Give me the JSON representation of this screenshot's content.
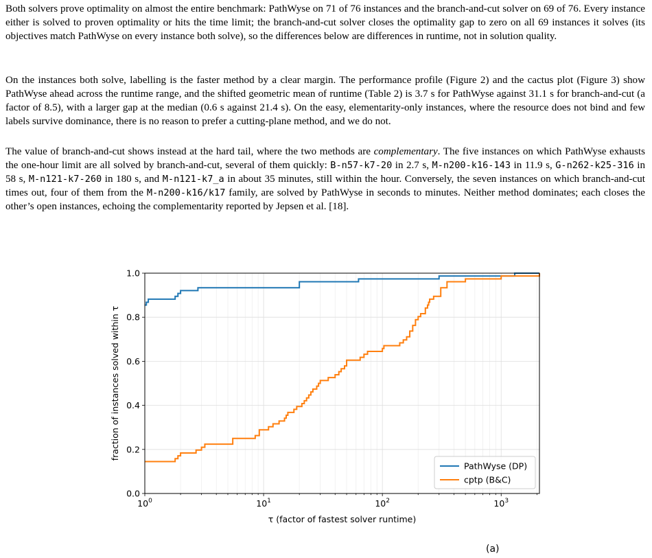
{
  "paragraphs": {
    "p1": "Both solvers prove optimality on almost the entire benchmark: PathWyse on 71 of 76 instances and the branch-and-cut solver on 69 of 76. Every instance either is solved to proven optimality or hits the time limit; the branch-and-cut solver closes the optimality gap to zero on all 69 instances it solves (its objectives match PathWyse on every instance both solve), so the differences below are differences in runtime, not in solution quality.",
    "p2": "On the instances both solve, labelling is the faster method by a clear margin. The performance profile (Figure 2) and the cactus plot (Figure 3) show PathWyse ahead across the runtime range, and the shifted geometric mean of runtime (Table 2) is 3.7 s for PathWyse against 31.1 s for branch-and-cut (a factor of 8.5), with a larger gap at the median (0.6 s against 21.4 s). On the easy, elementarity-only instances, where the resource does not bind and few labels survive dominance, there is no reason to prefer a cutting-plane method, and we do not.",
    "p3": {
      "t1": "The value of branch-and-cut shows instead at the hard tail, where the two methods are ",
      "em": "complementary",
      "t2": ". The five instances on which PathWyse exhausts the one-hour limit are all solved by branch-and-cut, several of them quickly: ",
      "c1": "B-n57-k7-20",
      "t3": " in 2.7 s, ",
      "c2": "M-n200-k16-143",
      "t4": " in 11.9 s, ",
      "c3": "G-n262-k25-316",
      "t5": " in 58 s, ",
      "c4": "M-n121-k7-260",
      "t6": " in 180 s, and ",
      "c5": "M-n121-k7_a",
      "t7": " in about 35 minutes, still within the hour. Conversely, the seven instances on which branch-and-cut times out, four of them from the ",
      "c6": "M-n200-k16/k17",
      "t8": " family, are solved by PathWyse in seconds to minutes. Neither method dominates; each closes the other’s open instances, echoing the complementarity reported by Jepsen et al. [18]."
    },
    "bottom_fragment": "(a)"
  },
  "colors": {
    "pathwyse": "#1f77b4",
    "cptp": "#ff7f0e"
  },
  "chart_data": {
    "type": "line",
    "step": "post",
    "xscale": "log",
    "xlim": [
      1,
      2100
    ],
    "ylim": [
      0,
      1
    ],
    "grid": true,
    "legend_position": "lower-right",
    "xlabel": "τ (factor of fastest solver runtime)",
    "ylabel": "fraction of instances solved within τ",
    "xticks": [
      {
        "base": "10",
        "exp": "0"
      },
      {
        "base": "10",
        "exp": "1"
      },
      {
        "base": "10",
        "exp": "2"
      },
      {
        "base": "10",
        "exp": "3"
      }
    ],
    "yticks": [
      "0.0",
      "0.2",
      "0.4",
      "0.6",
      "0.8",
      "1.0"
    ],
    "series": [
      {
        "name": "PathWyse (DP)",
        "color": "#1f77b4",
        "x": [
          1,
          1.03,
          1.07,
          1.15,
          1.8,
          1.9,
          2.0,
          2.8,
          20,
          63,
          300,
          1300,
          2100
        ],
        "y": [
          0.855,
          0.868,
          0.882,
          0.882,
          0.895,
          0.908,
          0.921,
          0.934,
          0.961,
          0.974,
          0.987,
          1.0,
          1.0
        ]
      },
      {
        "name": "cptp (B&C)",
        "color": "#ff7f0e",
        "x": [
          1,
          1.8,
          1.9,
          2.0,
          2.2,
          2.7,
          3.0,
          3.2,
          4.4,
          5.5,
          6.4,
          8.5,
          9.2,
          10,
          11,
          12,
          13.5,
          14,
          15,
          15.5,
          16,
          18,
          19,
          21,
          22,
          23,
          24,
          25,
          26,
          28,
          29,
          30,
          35,
          40,
          43,
          45,
          48,
          50,
          60,
          65,
          70,
          75,
          100,
          103,
          110,
          140,
          150,
          160,
          170,
          180,
          190,
          200,
          210,
          230,
          240,
          245,
          250,
          270,
          310,
          350,
          500,
          1000,
          2100
        ],
        "y": [
          0.145,
          0.158,
          0.171,
          0.184,
          0.184,
          0.197,
          0.21,
          0.224,
          0.224,
          0.25,
          0.25,
          0.263,
          0.289,
          0.289,
          0.303,
          0.316,
          0.329,
          0.329,
          0.342,
          0.355,
          0.368,
          0.382,
          0.395,
          0.408,
          0.421,
          0.434,
          0.447,
          0.461,
          0.474,
          0.487,
          0.5,
          0.513,
          0.526,
          0.539,
          0.553,
          0.566,
          0.579,
          0.605,
          0.605,
          0.618,
          0.632,
          0.645,
          0.658,
          0.671,
          0.671,
          0.684,
          0.697,
          0.711,
          0.737,
          0.763,
          0.789,
          0.803,
          0.816,
          0.842,
          0.855,
          0.868,
          0.882,
          0.895,
          0.934,
          0.961,
          0.974,
          0.987,
          1.0
        ]
      }
    ]
  }
}
